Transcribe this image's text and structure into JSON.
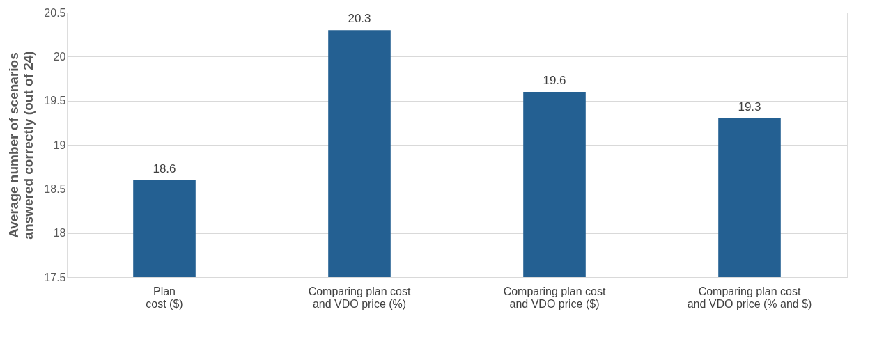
{
  "chart_data": {
    "type": "bar",
    "ylabel": "Average number of scenarios answered correctly (out of 24)",
    "categories": [
      "Plan cost ($)",
      "Comparing plan cost and VDO price (%)",
      "Comparing plan cost and VDO price ($)",
      "Comparing plan cost and VDO price (% and $)"
    ],
    "values": [
      18.6,
      20.3,
      19.6,
      19.3
    ],
    "color": "#246092",
    "data_labels": true,
    "grid": "y",
    "ylim": [
      17.5,
      20.5
    ],
    "yticks": [
      17.5,
      18,
      18.5,
      19,
      19.5,
      20,
      20.5
    ]
  }
}
